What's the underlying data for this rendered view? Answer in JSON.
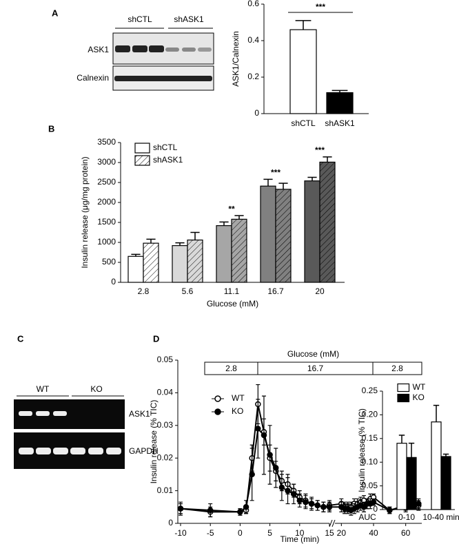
{
  "panel_labels": [
    "A",
    "B",
    "C",
    "D"
  ],
  "blot_a": {
    "groups": [
      "shCTL",
      "shASK1"
    ],
    "rows": [
      "ASK1",
      "Calnexin"
    ]
  },
  "blot_c": {
    "groups": [
      "WT",
      "KO"
    ],
    "rows": [
      "ASK1",
      "GAPDH"
    ]
  },
  "chart_data": [
    {
      "type": "bar",
      "ylabel": "ASK1/Calnexin",
      "categories": [
        "shCTL",
        "shASK1"
      ],
      "values": [
        0.46,
        0.115
      ],
      "errors": [
        0.05,
        0.012
      ],
      "colors": [
        "#ffffff",
        "#000000"
      ],
      "ylim": [
        0,
        0.6
      ],
      "yticks": [
        0,
        0.2,
        0.4,
        0.6
      ],
      "annotation": "***"
    },
    {
      "type": "bar",
      "ylabel": "Insulin release (μg/mg protein)",
      "xlabel": "Glucose (mM)",
      "categories": [
        "2.8",
        "5.6",
        "11.1",
        "16.7",
        "20"
      ],
      "series": [
        {
          "name": "shCTL",
          "colors": [
            "#ffffff",
            "#d9d9d9",
            "#a6a6a6",
            "#808080",
            "#595959"
          ],
          "hatch": false,
          "values": [
            650,
            920,
            1420,
            2410,
            2540
          ],
          "errors": [
            50,
            70,
            90,
            170,
            90
          ]
        },
        {
          "name": "shASK1",
          "colors": [
            "#ffffff",
            "#d9d9d9",
            "#a6a6a6",
            "#808080",
            "#595959"
          ],
          "hatch": true,
          "values": [
            980,
            1060,
            1580,
            2330,
            3010
          ],
          "errors": [
            100,
            190,
            90,
            150,
            130
          ]
        }
      ],
      "significance": [
        null,
        null,
        "**",
        "***",
        "***"
      ],
      "ylim": [
        0,
        3500
      ],
      "yticks": [
        0,
        500,
        1000,
        1500,
        2000,
        2500,
        3000,
        3500
      ]
    },
    {
      "type": "line",
      "ylabel": "Insulin release (% TIC)",
      "xlabel": "Time (min)",
      "stimulus_label": "Glucose (mM)",
      "stimulus_steps": [
        "2.8",
        "16.7",
        "2.8"
      ],
      "x": [
        -10,
        -5,
        0,
        1,
        2,
        3,
        4,
        5,
        6,
        7,
        8,
        9,
        10,
        11,
        12,
        13,
        14,
        15,
        20,
        22,
        24,
        26,
        28,
        30,
        32,
        34,
        36,
        38,
        40,
        50,
        60,
        68
      ],
      "x_segments": [
        {
          "xlim": [
            -10,
            15
          ],
          "xticks": [
            -10,
            -5,
            0,
            5,
            10,
            15
          ]
        },
        {
          "xlim": [
            16,
            70
          ],
          "xticks": [
            20,
            40,
            60
          ]
        }
      ],
      "series": [
        {
          "name": "WT",
          "color": "#ffffff",
          "values": [
            0.0045,
            0.0035,
            0.0035,
            0.004,
            0.02,
            0.0365,
            0.028,
            0.02,
            0.016,
            0.013,
            0.012,
            0.01,
            0.008,
            0.007,
            0.006,
            0.0055,
            0.005,
            0.0055,
            0.006,
            0.005,
            0.005,
            0.005,
            0.006,
            0.006,
            0.0065,
            0.007,
            0.006,
            0.0075,
            0.008,
            0.004,
            0.0055,
            0.0055
          ],
          "errors": [
            0.002,
            0.0015,
            0.001,
            0.001,
            0.004,
            0.006,
            0.004,
            0.004,
            0.003,
            0.003,
            0.003,
            0.002,
            0.002,
            0.002,
            0.0015,
            0.0015,
            0.0015,
            0.0015,
            0.0015,
            0.0015,
            0.0015,
            0.0015,
            0.0015,
            0.0015,
            0.0015,
            0.0015,
            0.0015,
            0.0015,
            0.001,
            0.001,
            0.0015,
            0.0015
          ]
        },
        {
          "name": "KO",
          "color": "#000000",
          "values": [
            0.0045,
            0.004,
            0.0035,
            0.005,
            0.015,
            0.029,
            0.027,
            0.021,
            0.017,
            0.011,
            0.01,
            0.009,
            0.007,
            0.0065,
            0.006,
            0.0055,
            0.005,
            0.005,
            0.005,
            0.0045,
            0.0045,
            0.004,
            0.0045,
            0.005,
            0.0055,
            0.005,
            0.006,
            0.006,
            0.0065,
            0.004,
            0.005,
            0.006
          ],
          "errors": [
            0.0015,
            0.002,
            0.001,
            0.002,
            0.008,
            0.009,
            0.012,
            0.009,
            0.006,
            0.004,
            0.004,
            0.003,
            0.002,
            0.002,
            0.002,
            0.0015,
            0.0015,
            0.0015,
            0.0015,
            0.0015,
            0.0015,
            0.0015,
            0.0015,
            0.0015,
            0.0015,
            0.0015,
            0.0015,
            0.0015,
            0.001,
            0.001,
            0.0015,
            0.0015
          ]
        }
      ],
      "ylim": [
        0,
        0.05
      ],
      "yticks": [
        0,
        0.01,
        0.02,
        0.03,
        0.04,
        0.05
      ]
    },
    {
      "type": "bar",
      "ylabel": "Insulin release (% TIC)",
      "xlabel": "AUC",
      "categories": [
        "0-10",
        "10-40 min"
      ],
      "series": [
        {
          "name": "WT",
          "color": "#ffffff",
          "values": [
            0.14,
            0.185
          ],
          "errors": [
            0.017,
            0.035
          ]
        },
        {
          "name": "KO",
          "color": "#000000",
          "values": [
            0.11,
            0.112
          ],
          "errors": [
            0.03,
            0.005
          ]
        }
      ],
      "ylim": [
        0,
        0.25
      ],
      "yticks": [
        0,
        0.05,
        {
          "value": 0.1,
          "label": "0.10"
        },
        0.15,
        {
          "value": 0.2,
          "label": "0.20"
        },
        0.25
      ]
    }
  ]
}
